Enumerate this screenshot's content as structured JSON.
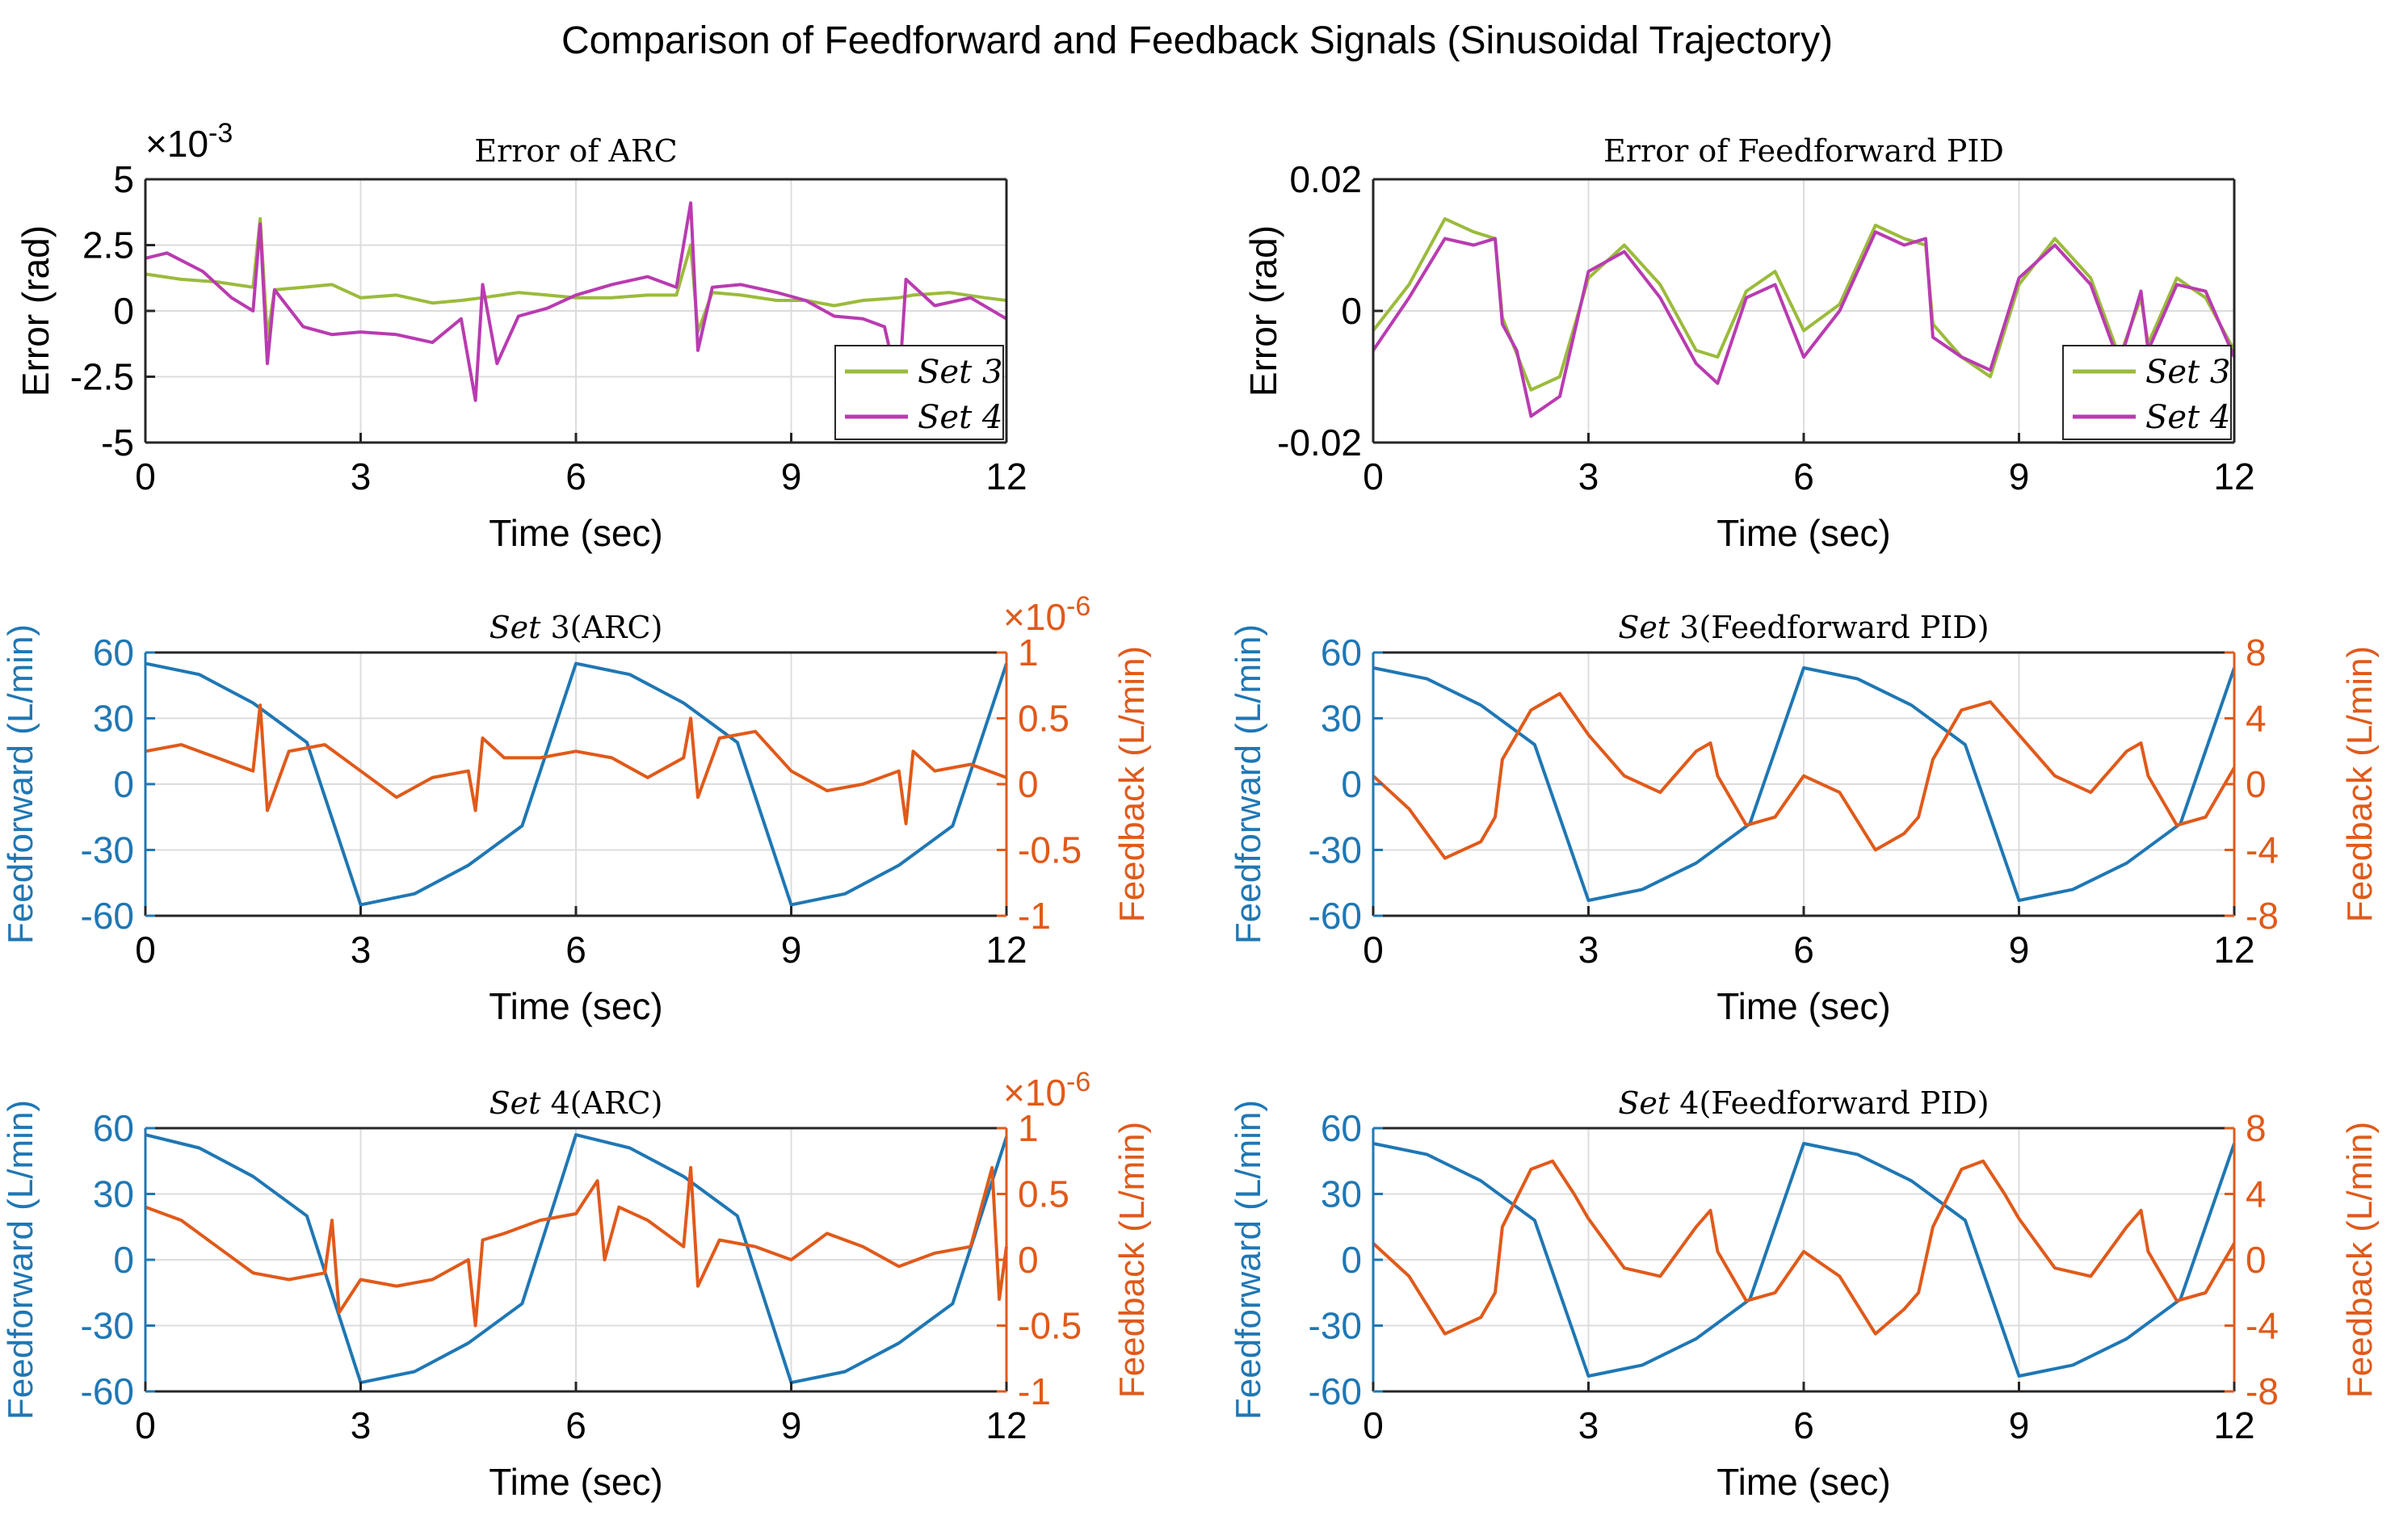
{
  "figure": {
    "title": "Comparison of Feedforward and Feedback Signals (Sinusoidal Trajectory)"
  },
  "colors": {
    "set3": "#9bbb3c",
    "set4": "#b93bb0",
    "feedforward": "#1f77b4",
    "feedback": "#e05a1a",
    "axis": "#262626",
    "grid": "#dcdcdc"
  },
  "chart_data": [
    {
      "id": "error-arc",
      "type": "line",
      "title": "Error of ARC",
      "xlabel": "Time (sec)",
      "ylabel": "Error (rad)",
      "exponent_label": "×10",
      "exponent_power": "-3",
      "xlim": [
        0,
        12
      ],
      "ylim": [
        -5,
        5
      ],
      "xticks": [
        0,
        3,
        6,
        9,
        12
      ],
      "yticks": [
        -5,
        -2.5,
        0,
        2.5,
        5
      ],
      "ytick_labels": [
        "-5",
        "-2.5",
        "0",
        "2.5",
        "5"
      ],
      "legend": {
        "position": "bottom-right",
        "entries": [
          "Set 3",
          "Set 4"
        ]
      },
      "series": [
        {
          "name": "Set 3",
          "color_key": "set3",
          "x": [
            0,
            0.5,
            1.0,
            1.5,
            1.6,
            1.7,
            1.8,
            2.2,
            2.6,
            3.0,
            3.5,
            4.0,
            4.4,
            4.7,
            5.2,
            5.6,
            6.0,
            6.5,
            7.0,
            7.4,
            7.6,
            7.7,
            7.9,
            8.3,
            8.8,
            9.2,
            9.6,
            10.0,
            10.5,
            10.7,
            11.2,
            11.7,
            12.0
          ],
          "y": [
            1.4,
            1.2,
            1.1,
            0.9,
            3.5,
            -1.0,
            0.8,
            0.9,
            1.0,
            0.5,
            0.6,
            0.3,
            0.4,
            0.5,
            0.7,
            0.6,
            0.5,
            0.5,
            0.6,
            0.6,
            2.5,
            -0.8,
            0.7,
            0.6,
            0.4,
            0.4,
            0.2,
            0.4,
            0.5,
            0.6,
            0.7,
            0.5,
            0.4
          ]
        },
        {
          "name": "Set 4",
          "color_key": "set4",
          "x": [
            0,
            0.3,
            0.8,
            1.2,
            1.5,
            1.6,
            1.7,
            1.8,
            2.2,
            2.6,
            3.0,
            3.5,
            4.0,
            4.4,
            4.6,
            4.7,
            4.9,
            5.2,
            5.6,
            6.0,
            6.5,
            7.0,
            7.4,
            7.6,
            7.7,
            7.9,
            8.3,
            8.8,
            9.2,
            9.6,
            10.0,
            10.3,
            10.5,
            10.6,
            11.0,
            11.5,
            12.0
          ],
          "y": [
            2.0,
            2.2,
            1.5,
            0.5,
            0.0,
            3.3,
            -2.0,
            0.8,
            -0.6,
            -0.9,
            -0.8,
            -0.9,
            -1.2,
            -0.3,
            -3.4,
            1.0,
            -2.0,
            -0.2,
            0.1,
            0.6,
            1.0,
            1.3,
            0.9,
            4.1,
            -1.5,
            0.9,
            1.0,
            0.7,
            0.4,
            -0.2,
            -0.3,
            -0.6,
            -3.0,
            1.2,
            0.2,
            0.5,
            -0.3
          ]
        }
      ]
    },
    {
      "id": "error-pid",
      "type": "line",
      "title": "Error of Feedforward PID",
      "xlabel": "Time (sec)",
      "ylabel": "Error (rad)",
      "xlim": [
        0,
        12
      ],
      "ylim": [
        -0.02,
        0.02
      ],
      "xticks": [
        0,
        3,
        6,
        9,
        12
      ],
      "yticks": [
        -0.02,
        0,
        0.02
      ],
      "ytick_labels": [
        "-0.02",
        "0",
        "0.02"
      ],
      "legend": {
        "position": "bottom-right",
        "entries": [
          "Set 3",
          "Set 4"
        ]
      },
      "series": [
        {
          "name": "Set 3",
          "color_key": "set3",
          "x": [
            0,
            0.5,
            1.0,
            1.4,
            1.7,
            1.8,
            2.2,
            2.6,
            3.0,
            3.5,
            4.0,
            4.5,
            4.8,
            5.2,
            5.6,
            6.0,
            6.5,
            7.0,
            7.4,
            7.7,
            7.8,
            8.2,
            8.6,
            9.0,
            9.5,
            10.0,
            10.4,
            10.7,
            10.8,
            11.2,
            11.6,
            12.0
          ],
          "y": [
            -0.003,
            0.004,
            0.014,
            0.012,
            0.011,
            -0.001,
            -0.012,
            -0.01,
            0.005,
            0.01,
            0.004,
            -0.006,
            -0.007,
            0.003,
            0.006,
            -0.003,
            0.001,
            0.013,
            0.011,
            0.01,
            -0.002,
            -0.007,
            -0.01,
            0.004,
            0.011,
            0.005,
            -0.007,
            0.002,
            -0.005,
            0.005,
            0.002,
            -0.006
          ]
        },
        {
          "name": "Set 4",
          "color_key": "set4",
          "x": [
            0,
            0.5,
            1.0,
            1.4,
            1.7,
            1.8,
            2.0,
            2.2,
            2.6,
            3.0,
            3.5,
            4.0,
            4.5,
            4.8,
            5.2,
            5.6,
            6.0,
            6.5,
            7.0,
            7.4,
            7.7,
            7.8,
            8.2,
            8.6,
            9.0,
            9.5,
            10.0,
            10.4,
            10.7,
            10.8,
            11.2,
            11.6,
            12.0
          ],
          "y": [
            -0.006,
            0.002,
            0.011,
            0.01,
            0.011,
            -0.002,
            -0.006,
            -0.016,
            -0.013,
            0.006,
            0.009,
            0.002,
            -0.008,
            -0.011,
            0.002,
            0.004,
            -0.007,
            0.0,
            0.012,
            0.01,
            0.011,
            -0.004,
            -0.007,
            -0.009,
            0.005,
            0.01,
            0.004,
            -0.008,
            0.003,
            -0.006,
            0.004,
            0.003,
            -0.007
          ]
        }
      ]
    },
    {
      "id": "set3-arc",
      "type": "line",
      "title_var": "Set",
      "title_num": " 3",
      "title_suffix": "(ARC)",
      "xlabel": "Time (sec)",
      "ylabel_left": "Feedforward (L/min)",
      "ylabel_right": "Feedback (L/min)",
      "exponent_label": "×10",
      "exponent_power": "-6",
      "xlim": [
        0,
        12
      ],
      "ylim_left": [
        -60,
        60
      ],
      "ylim_right": [
        -1,
        1
      ],
      "xticks": [
        0,
        3,
        6,
        9,
        12
      ],
      "yticks_left": [
        -60,
        -30,
        0,
        30,
        60
      ],
      "yticks_right": [
        -1,
        -0.5,
        0,
        0.5,
        1
      ],
      "ytick_labels_right": [
        "-1",
        "-0.5",
        "0",
        "0.5",
        "1"
      ],
      "series": [
        {
          "name": "Feedforward",
          "axis": "left",
          "color_key": "feedforward",
          "x": [
            0,
            0.75,
            1.5,
            2.25,
            3.0,
            3.75,
            4.5,
            5.25,
            6.0,
            6.75,
            7.5,
            8.25,
            9.0,
            9.75,
            10.5,
            11.25,
            12.0
          ],
          "y": [
            55,
            50,
            37,
            19,
            -55,
            -50,
            -37,
            -19,
            55,
            50,
            37,
            19,
            -55,
            -50,
            -37,
            -19,
            55
          ]
        },
        {
          "name": "Feedback",
          "axis": "right",
          "color_key": "feedback",
          "x": [
            0,
            0.5,
            1.0,
            1.5,
            1.6,
            1.7,
            2.0,
            2.5,
            3.0,
            3.5,
            4.0,
            4.5,
            4.6,
            4.7,
            5.0,
            5.5,
            6.0,
            6.5,
            7.0,
            7.5,
            7.6,
            7.7,
            8.0,
            8.5,
            9.0,
            9.5,
            10.0,
            10.5,
            10.6,
            10.7,
            11.0,
            11.5,
            12.0
          ],
          "y": [
            0.25,
            0.3,
            0.2,
            0.1,
            0.6,
            -0.2,
            0.25,
            0.3,
            0.1,
            -0.1,
            0.05,
            0.1,
            -0.2,
            0.35,
            0.2,
            0.2,
            0.25,
            0.2,
            0.05,
            0.2,
            0.5,
            -0.1,
            0.35,
            0.4,
            0.1,
            -0.05,
            0.0,
            0.1,
            -0.3,
            0.25,
            0.1,
            0.15,
            0.05
          ]
        }
      ]
    },
    {
      "id": "set3-pid",
      "type": "line",
      "title_var": "Set",
      "title_num": " 3",
      "title_suffix": "(Feedforward PID)",
      "xlabel": "Time (sec)",
      "ylabel_left": "Feedforward (L/min)",
      "ylabel_right": "Feedback (L/min)",
      "xlim": [
        0,
        12
      ],
      "ylim_left": [
        -60,
        60
      ],
      "ylim_right": [
        -8,
        8
      ],
      "xticks": [
        0,
        3,
        6,
        9,
        12
      ],
      "yticks_left": [
        -60,
        -30,
        0,
        30,
        60
      ],
      "yticks_right": [
        -8,
        -4,
        0,
        4,
        8
      ],
      "ytick_labels_right": [
        "-8",
        "-4",
        "0",
        "4",
        "8"
      ],
      "series": [
        {
          "name": "Feedforward",
          "axis": "left",
          "color_key": "feedforward",
          "x": [
            0,
            0.75,
            1.5,
            2.25,
            3.0,
            3.75,
            4.5,
            5.25,
            6.0,
            6.75,
            7.5,
            8.25,
            9.0,
            9.75,
            10.5,
            11.25,
            12.0
          ],
          "y": [
            53,
            48,
            36,
            18,
            -53,
            -48,
            -36,
            -18,
            53,
            48,
            36,
            18,
            -53,
            -48,
            -36,
            -18,
            53
          ]
        },
        {
          "name": "Feedback",
          "axis": "right",
          "color_key": "feedback",
          "x": [
            0,
            0.5,
            1.0,
            1.5,
            1.7,
            1.8,
            2.2,
            2.6,
            3.0,
            3.5,
            4.0,
            4.5,
            4.7,
            4.8,
            5.2,
            5.6,
            6.0,
            6.5,
            7.0,
            7.4,
            7.6,
            7.8,
            8.2,
            8.6,
            9.0,
            9.5,
            10.0,
            10.5,
            10.7,
            10.8,
            11.2,
            11.6,
            12.0
          ],
          "y": [
            0.5,
            -1.5,
            -4.5,
            -3.5,
            -2.0,
            1.5,
            4.5,
            5.5,
            3.0,
            0.5,
            -0.5,
            2.0,
            2.5,
            0.5,
            -2.5,
            -2.0,
            0.5,
            -0.5,
            -4.0,
            -3.0,
            -2.0,
            1.5,
            4.5,
            5.0,
            3.0,
            0.5,
            -0.5,
            2.0,
            2.5,
            0.5,
            -2.5,
            -2.0,
            1.0
          ]
        }
      ]
    },
    {
      "id": "set4-arc",
      "type": "line",
      "title_var": "Set",
      "title_num": " 4",
      "title_suffix": "(ARC)",
      "xlabel": "Time (sec)",
      "ylabel_left": "Feedforward (L/min)",
      "ylabel_right": "Feedback (L/min)",
      "exponent_label": "×10",
      "exponent_power": "-6",
      "xlim": [
        0,
        12
      ],
      "ylim_left": [
        -60,
        60
      ],
      "ylim_right": [
        -1,
        1
      ],
      "xticks": [
        0,
        3,
        6,
        9,
        12
      ],
      "yticks_left": [
        -60,
        -30,
        0,
        30,
        60
      ],
      "yticks_right": [
        -1,
        -0.5,
        0,
        0.5,
        1
      ],
      "ytick_labels_right": [
        "-1",
        "-0.5",
        "0",
        "0.5",
        "1"
      ],
      "series": [
        {
          "name": "Feedforward",
          "axis": "left",
          "color_key": "feedforward",
          "x": [
            0,
            0.75,
            1.5,
            2.25,
            3.0,
            3.75,
            4.5,
            5.25,
            6.0,
            6.75,
            7.5,
            8.25,
            9.0,
            9.75,
            10.5,
            11.25,
            12.0
          ],
          "y": [
            57,
            51,
            38,
            20,
            -56,
            -51,
            -38,
            -20,
            57,
            51,
            38,
            20,
            -56,
            -51,
            -38,
            -20,
            56
          ]
        },
        {
          "name": "Feedback",
          "axis": "right",
          "color_key": "feedback",
          "x": [
            0,
            0.5,
            1.0,
            1.5,
            2.0,
            2.5,
            2.6,
            2.7,
            3.0,
            3.5,
            4.0,
            4.5,
            4.6,
            4.7,
            5.0,
            5.5,
            6.0,
            6.3,
            6.4,
            6.6,
            7.0,
            7.5,
            7.6,
            7.7,
            8.0,
            8.5,
            9.0,
            9.5,
            10.0,
            10.5,
            11.0,
            11.5,
            11.8,
            11.9,
            12.0
          ],
          "y": [
            0.4,
            0.3,
            0.1,
            -0.1,
            -0.15,
            -0.1,
            0.3,
            -0.4,
            -0.15,
            -0.2,
            -0.15,
            0.0,
            -0.5,
            0.15,
            0.2,
            0.3,
            0.35,
            0.6,
            0.0,
            0.4,
            0.3,
            0.1,
            0.7,
            -0.2,
            0.15,
            0.1,
            0.0,
            0.2,
            0.1,
            -0.05,
            0.05,
            0.1,
            0.7,
            -0.3,
            0.1
          ]
        }
      ]
    },
    {
      "id": "set4-pid",
      "type": "line",
      "title_var": "Set",
      "title_num": " 4",
      "title_suffix": "(Feedforward PID)",
      "xlabel": "Time (sec)",
      "ylabel_left": "Feedforward (L/min)",
      "ylabel_right": "Feedback (L/min)",
      "xlim": [
        0,
        12
      ],
      "ylim_left": [
        -60,
        60
      ],
      "ylim_right": [
        -8,
        8
      ],
      "xticks": [
        0,
        3,
        6,
        9,
        12
      ],
      "yticks_left": [
        -60,
        -30,
        0,
        30,
        60
      ],
      "yticks_right": [
        -8,
        -4,
        0,
        4,
        8
      ],
      "ytick_labels_right": [
        "-8",
        "-4",
        "0",
        "4",
        "8"
      ],
      "series": [
        {
          "name": "Feedforward",
          "axis": "left",
          "color_key": "feedforward",
          "x": [
            0,
            0.75,
            1.5,
            2.25,
            3.0,
            3.75,
            4.5,
            5.25,
            6.0,
            6.75,
            7.5,
            8.25,
            9.0,
            9.75,
            10.5,
            11.25,
            12.0
          ],
          "y": [
            53,
            48,
            36,
            18,
            -53,
            -48,
            -36,
            -18,
            53,
            48,
            36,
            18,
            -53,
            -48,
            -36,
            -18,
            53
          ]
        },
        {
          "name": "Feedback",
          "axis": "right",
          "color_key": "feedback",
          "x": [
            0,
            0.5,
            1.0,
            1.5,
            1.7,
            1.8,
            2.2,
            2.5,
            2.8,
            3.0,
            3.5,
            4.0,
            4.5,
            4.7,
            4.8,
            5.2,
            5.6,
            6.0,
            6.5,
            7.0,
            7.4,
            7.6,
            7.8,
            8.2,
            8.5,
            8.8,
            9.0,
            9.5,
            10.0,
            10.5,
            10.7,
            10.8,
            11.2,
            11.6,
            12.0
          ],
          "y": [
            1.0,
            -1.0,
            -4.5,
            -3.5,
            -2.0,
            2.0,
            5.5,
            6.0,
            4.0,
            2.5,
            -0.5,
            -1.0,
            2.0,
            3.0,
            0.5,
            -2.5,
            -2.0,
            0.5,
            -1.0,
            -4.5,
            -3.0,
            -2.0,
            2.0,
            5.5,
            6.0,
            4.0,
            2.5,
            -0.5,
            -1.0,
            2.0,
            3.0,
            0.5,
            -2.5,
            -2.0,
            1.0
          ]
        }
      ]
    }
  ]
}
